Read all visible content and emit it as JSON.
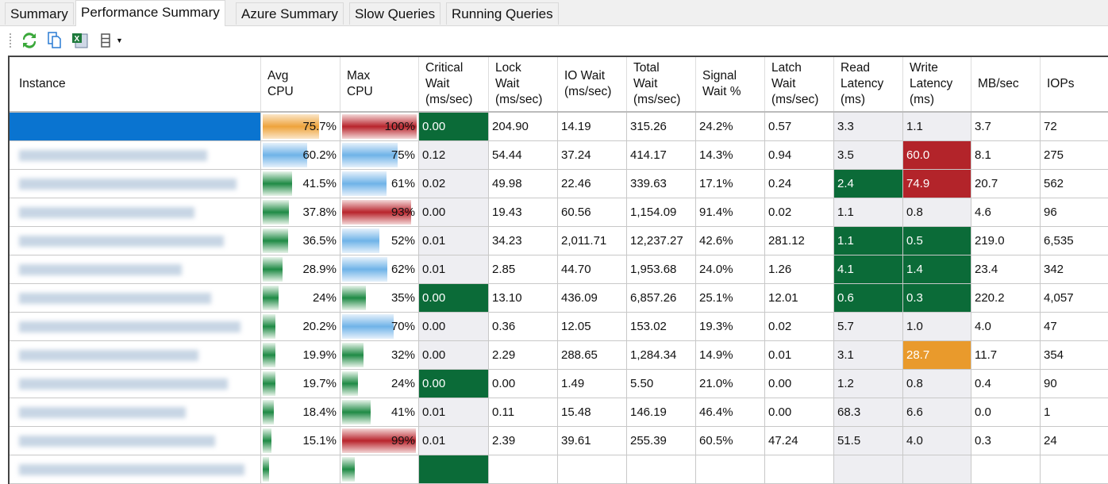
{
  "tabs": [
    "Summary",
    "Performance Summary",
    "Azure Summary",
    "Slow Queries",
    "Running Queries"
  ],
  "active_tab": 1,
  "toolbar": {
    "icons": [
      "refresh-icon",
      "copy-icon",
      "excel-export-icon",
      "columns-icon",
      "dropdown-arrow-icon"
    ]
  },
  "columns": [
    "Instance",
    "Avg\nCPU",
    "Max\nCPU",
    "Critical\nWait\n(ms/sec)",
    "Lock\nWait\n(ms/sec)",
    "IO Wait\n(ms/sec)",
    "Total\nWait\n(ms/sec)",
    "Signal\nWait %",
    "Latch\nWait\n(ms/sec)",
    "Read\nLatency\n(ms)",
    "Write\nLatency\n(ms)",
    "MB/sec",
    "IOPs"
  ],
  "colors": {
    "good": "#0b6b38",
    "bad": "#b3242a",
    "warn": "#e99a2c",
    "selected": "#0a74d0"
  },
  "rows": [
    {
      "avg": "75.7%",
      "avg_v": 75.7,
      "avg_c": "orange",
      "max": "100%",
      "max_v": 100,
      "max_c": "red",
      "crit": "0.00",
      "crit_h": "g",
      "lock": "204.90",
      "io": "14.19",
      "total": "315.26",
      "signal": "24.2%",
      "latch": "0.57",
      "read": "3.3",
      "read_h": "",
      "write": "1.1",
      "write_h": "",
      "mb": "3.7",
      "iops": "72",
      "selected": true
    },
    {
      "avg": "60.2%",
      "avg_v": 60.2,
      "avg_c": "blue",
      "max": "75%",
      "max_v": 75,
      "max_c": "blue",
      "crit": "0.12",
      "crit_h": "",
      "lock": "54.44",
      "io": "37.24",
      "total": "414.17",
      "signal": "14.3%",
      "latch": "0.94",
      "read": "3.5",
      "read_h": "",
      "write": "60.0",
      "write_h": "r",
      "mb": "8.1",
      "iops": "275"
    },
    {
      "avg": "41.5%",
      "avg_v": 41.5,
      "avg_c": "green",
      "max": "61%",
      "max_v": 61,
      "max_c": "blue",
      "crit": "0.02",
      "crit_h": "",
      "lock": "49.98",
      "io": "22.46",
      "total": "339.63",
      "signal": "17.1%",
      "latch": "0.24",
      "read": "2.4",
      "read_h": "g",
      "write": "74.9",
      "write_h": "r",
      "mb": "20.7",
      "iops": "562"
    },
    {
      "avg": "37.8%",
      "avg_v": 37.8,
      "avg_c": "green",
      "max": "93%",
      "max_v": 93,
      "max_c": "red",
      "crit": "0.00",
      "crit_h": "",
      "lock": "19.43",
      "io": "60.56",
      "total": "1,154.09",
      "signal": "91.4%",
      "latch": "0.02",
      "read": "1.1",
      "read_h": "",
      "write": "0.8",
      "write_h": "",
      "mb": "4.6",
      "iops": "96"
    },
    {
      "avg": "36.5%",
      "avg_v": 36.5,
      "avg_c": "green",
      "max": "52%",
      "max_v": 52,
      "max_c": "blue",
      "crit": "0.01",
      "crit_h": "",
      "lock": "34.23",
      "io": "2,011.71",
      "total": "12,237.27",
      "signal": "42.6%",
      "latch": "281.12",
      "read": "1.1",
      "read_h": "g",
      "write": "0.5",
      "write_h": "g",
      "mb": "219.0",
      "iops": "6,535"
    },
    {
      "avg": "28.9%",
      "avg_v": 28.9,
      "avg_c": "green",
      "max": "62%",
      "max_v": 62,
      "max_c": "blue",
      "crit": "0.01",
      "crit_h": "",
      "lock": "2.85",
      "io": "44.70",
      "total": "1,953.68",
      "signal": "24.0%",
      "latch": "1.26",
      "read": "4.1",
      "read_h": "g",
      "write": "1.4",
      "write_h": "g",
      "mb": "23.4",
      "iops": "342"
    },
    {
      "avg": "24%",
      "avg_v": 24,
      "avg_c": "green",
      "max": "35%",
      "max_v": 35,
      "max_c": "green",
      "crit": "0.00",
      "crit_h": "g",
      "lock": "13.10",
      "io": "436.09",
      "total": "6,857.26",
      "signal": "25.1%",
      "latch": "12.01",
      "read": "0.6",
      "read_h": "g",
      "write": "0.3",
      "write_h": "g",
      "mb": "220.2",
      "iops": "4,057"
    },
    {
      "avg": "20.2%",
      "avg_v": 20.2,
      "avg_c": "green",
      "max": "70%",
      "max_v": 70,
      "max_c": "blue",
      "crit": "0.00",
      "crit_h": "",
      "lock": "0.36",
      "io": "12.05",
      "total": "153.02",
      "signal": "19.3%",
      "latch": "0.02",
      "read": "5.7",
      "read_h": "",
      "write": "1.0",
      "write_h": "",
      "mb": "4.0",
      "iops": "47"
    },
    {
      "avg": "19.9%",
      "avg_v": 19.9,
      "avg_c": "green",
      "max": "32%",
      "max_v": 32,
      "max_c": "green",
      "crit": "0.00",
      "crit_h": "",
      "lock": "2.29",
      "io": "288.65",
      "total": "1,284.34",
      "signal": "14.9%",
      "latch": "0.01",
      "read": "3.1",
      "read_h": "",
      "write": "28.7",
      "write_h": "o",
      "mb": "11.7",
      "iops": "354"
    },
    {
      "avg": "19.7%",
      "avg_v": 19.7,
      "avg_c": "green",
      "max": "24%",
      "max_v": 24,
      "max_c": "green",
      "crit": "0.00",
      "crit_h": "g",
      "lock": "0.00",
      "io": "1.49",
      "total": "5.50",
      "signal": "21.0%",
      "latch": "0.00",
      "read": "1.2",
      "read_h": "",
      "write": "0.8",
      "write_h": "",
      "mb": "0.4",
      "iops": "90"
    },
    {
      "avg": "18.4%",
      "avg_v": 18.4,
      "avg_c": "green",
      "max": "41%",
      "max_v": 41,
      "max_c": "green",
      "crit": "0.01",
      "crit_h": "",
      "lock": "0.11",
      "io": "15.48",
      "total": "146.19",
      "signal": "46.4%",
      "latch": "0.00",
      "read": "68.3",
      "read_h": "",
      "write": "6.6",
      "write_h": "",
      "mb": "0.0",
      "iops": "1"
    },
    {
      "avg": "15.1%",
      "avg_v": 15.1,
      "avg_c": "green",
      "max": "99%",
      "max_v": 99,
      "max_c": "red",
      "crit": "0.01",
      "crit_h": "",
      "lock": "2.39",
      "io": "39.61",
      "total": "255.39",
      "signal": "60.5%",
      "latch": "47.24",
      "read": "51.5",
      "read_h": "",
      "write": "4.0",
      "write_h": "",
      "mb": "0.3",
      "iops": "24"
    },
    {
      "avg": "",
      "avg_v": 12,
      "avg_c": "green",
      "max": "",
      "max_v": 20,
      "max_c": "green",
      "crit": "",
      "crit_h": "g",
      "lock": "",
      "io": "",
      "total": "",
      "signal": "",
      "latch": "",
      "read": "",
      "read_h": "",
      "write": "",
      "write_h": "",
      "mb": "",
      "iops": ""
    }
  ]
}
